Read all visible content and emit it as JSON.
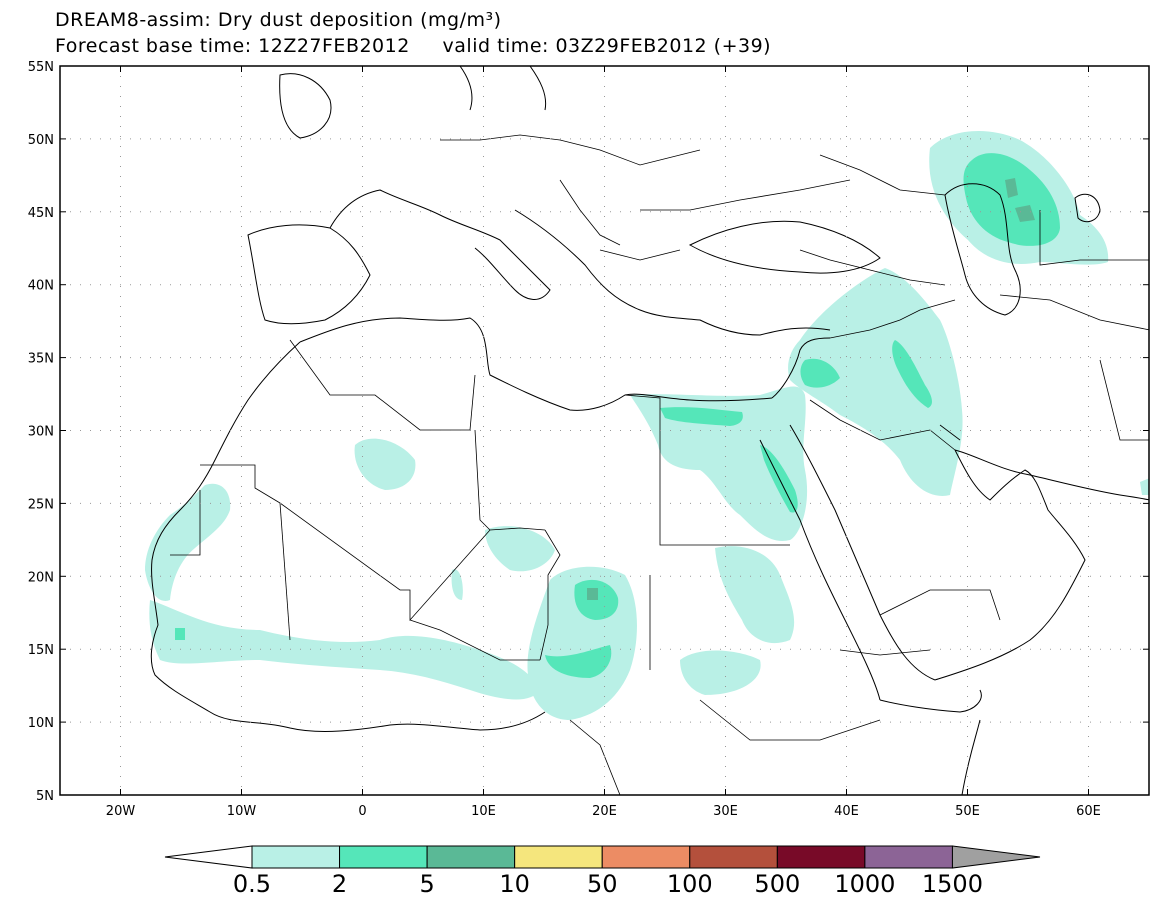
{
  "title": {
    "line1": "DREAM8-assim: Dry dust deposition (mg/m³)",
    "forecast_base": "Forecast base time: 12Z27FEB2012",
    "valid_time": "valid time: 03Z29FEB2012 (+39)"
  },
  "axes": {
    "lat_labels": [
      "55N",
      "50N",
      "45N",
      "40N",
      "35N",
      "30N",
      "25N",
      "20N",
      "15N",
      "10N",
      "5N"
    ],
    "lat_values": [
      55,
      50,
      45,
      40,
      35,
      30,
      25,
      20,
      15,
      10,
      5
    ],
    "lon_labels": [
      "20W",
      "10W",
      "0",
      "10E",
      "20E",
      "30E",
      "40E",
      "50E",
      "60E"
    ],
    "lon_values": [
      -20,
      -10,
      0,
      10,
      20,
      30,
      40,
      50,
      60
    ],
    "lon_range": [
      -25,
      65
    ],
    "lat_range": [
      5,
      55
    ],
    "grid": "dotted"
  },
  "colorbar": {
    "labels": [
      "0.5",
      "2",
      "5",
      "10",
      "50",
      "100",
      "500",
      "1000",
      "1500"
    ],
    "colors": [
      "#b9f0e6",
      "#55e6b9",
      "#5ab996",
      "#f5e67d",
      "#ec8c64",
      "#b4503c",
      "#780a28",
      "#8c6496",
      "#a0a0a0"
    ],
    "under_color": "#ffffff"
  },
  "dust_regions": [
    {
      "name": "kazakhstan",
      "level": "0.5-2",
      "center": [
        53,
        45.5
      ]
    },
    {
      "name": "kazakhstan-core",
      "level": "2-5",
      "center": [
        54,
        45.5
      ]
    },
    {
      "name": "kazakhstan-peak",
      "level": "5-10",
      "center": [
        55,
        45
      ]
    },
    {
      "name": "mesopotamia",
      "level": "0.5-2",
      "center": [
        43,
        33
      ]
    },
    {
      "name": "iraq-core",
      "level": "2-5",
      "center": [
        45.5,
        32.5
      ]
    },
    {
      "name": "egypt-coast",
      "level": "2-5",
      "center": [
        29,
        31
      ]
    },
    {
      "name": "red-sea-coast",
      "level": "2-5",
      "center": [
        35,
        26
      ]
    },
    {
      "name": "sudan-chad",
      "level": "0.5-2",
      "center": [
        20,
        15
      ]
    },
    {
      "name": "chad-core-north",
      "level": "2-5",
      "center": [
        19.5,
        18.5
      ]
    },
    {
      "name": "chad-core-south",
      "level": "2-5",
      "center": [
        20,
        13.5
      ]
    },
    {
      "name": "sahel-band",
      "level": "0.5-2",
      "center": [
        5,
        14
      ]
    },
    {
      "name": "mauritania-coast",
      "level": "0.5-2",
      "center": [
        -15,
        21
      ]
    },
    {
      "name": "algeria-patch",
      "level": "0.5-2",
      "center": [
        1.5,
        27.5
      ]
    },
    {
      "name": "sudan-east",
      "level": "0.5-2",
      "center": [
        31,
        17
      ]
    }
  ]
}
